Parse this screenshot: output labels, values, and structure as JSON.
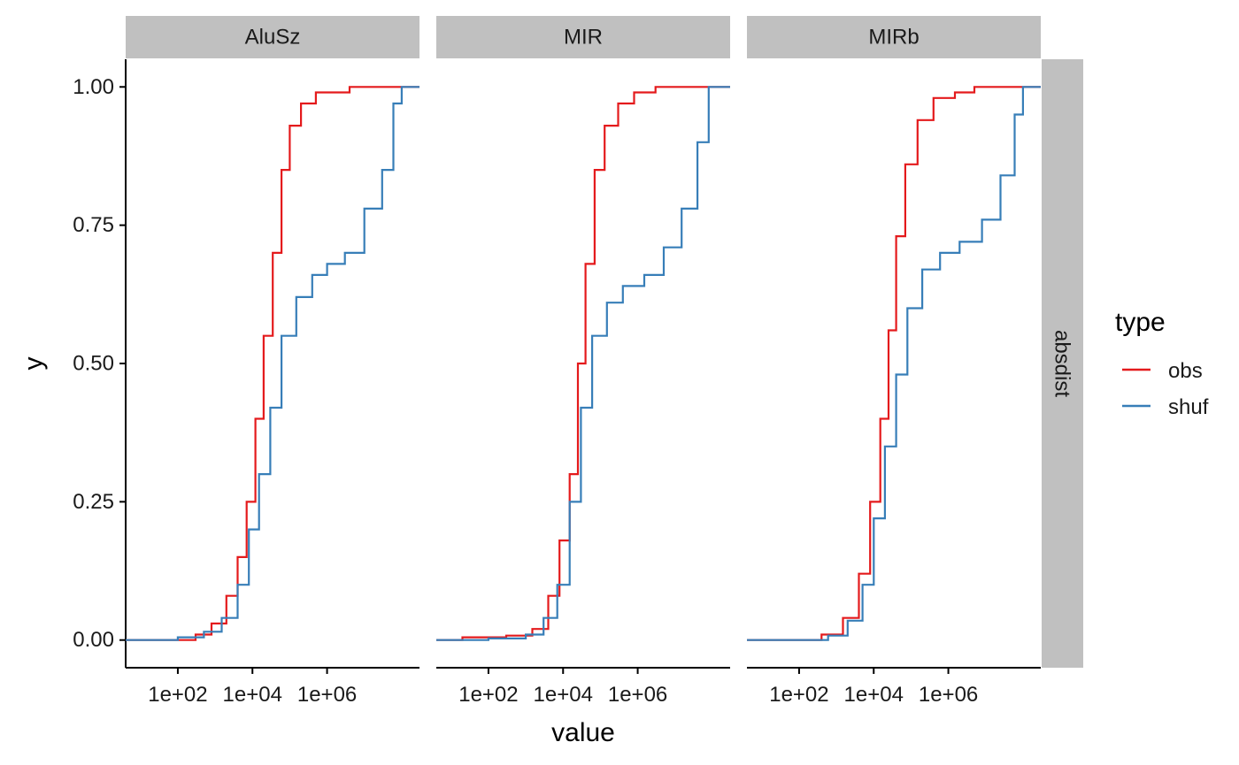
{
  "chart_data": {
    "type": "line",
    "xlabel": "value",
    "ylabel": "y",
    "x_scale": "log10",
    "xlim": [
      4,
      300000000
    ],
    "ylim": [
      -0.05,
      1.05
    ],
    "x_ticks": [
      100,
      10000,
      1000000
    ],
    "x_tick_labels": [
      "1e+02",
      "1e+04",
      "1e+06"
    ],
    "y_ticks": [
      0,
      0.25,
      0.5,
      0.75,
      1
    ],
    "y_tick_labels": [
      "0.00",
      "0.25",
      "0.50",
      "0.75",
      "1.00"
    ],
    "row_strip": "absdist",
    "legend": {
      "title": "type",
      "position": "right"
    },
    "colors": {
      "obs": "#E41A1C",
      "shuf": "#377EB8",
      "strip_bg": "#C0C0C0",
      "axis": "#000000"
    },
    "panels": [
      {
        "title": "AluSz",
        "series": [
          {
            "name": "obs",
            "points": [
              [
                4,
                0
              ],
              [
                30,
                0
              ],
              [
                300,
                0.01
              ],
              [
                800,
                0.03
              ],
              [
                2000,
                0.08
              ],
              [
                4000,
                0.15
              ],
              [
                7000,
                0.25
              ],
              [
                12000,
                0.4
              ],
              [
                20000,
                0.55
              ],
              [
                35000,
                0.7
              ],
              [
                60000,
                0.85
              ],
              [
                100000,
                0.93
              ],
              [
                200000,
                0.97
              ],
              [
                500000,
                0.99
              ],
              [
                2000000,
                0.99
              ],
              [
                4000000,
                1
              ],
              [
                300000000,
                1
              ]
            ]
          },
          {
            "name": "shuf",
            "points": [
              [
                4,
                0
              ],
              [
                100,
                0.005
              ],
              [
                500,
                0.015
              ],
              [
                1500,
                0.04
              ],
              [
                4000,
                0.1
              ],
              [
                8000,
                0.2
              ],
              [
                15000,
                0.3
              ],
              [
                30000,
                0.42
              ],
              [
                60000,
                0.55
              ],
              [
                150000,
                0.62
              ],
              [
                400000,
                0.66
              ],
              [
                1000000,
                0.68
              ],
              [
                3000000,
                0.7
              ],
              [
                10000000,
                0.78
              ],
              [
                30000000,
                0.85
              ],
              [
                60000000,
                0.97
              ],
              [
                100000000,
                1
              ],
              [
                300000000,
                1
              ]
            ]
          }
        ]
      },
      {
        "title": "MIR",
        "series": [
          {
            "name": "obs",
            "points": [
              [
                4,
                0
              ],
              [
                20,
                0.005
              ],
              [
                300,
                0.008
              ],
              [
                1500,
                0.02
              ],
              [
                4000,
                0.08
              ],
              [
                8000,
                0.18
              ],
              [
                15000,
                0.3
              ],
              [
                25000,
                0.5
              ],
              [
                40000,
                0.68
              ],
              [
                70000,
                0.85
              ],
              [
                130000,
                0.93
              ],
              [
                300000,
                0.97
              ],
              [
                800000,
                0.99
              ],
              [
                3000000,
                1
              ],
              [
                300000000,
                1
              ]
            ]
          },
          {
            "name": "shuf",
            "points": [
              [
                4,
                0
              ],
              [
                100,
                0.003
              ],
              [
                1000,
                0.01
              ],
              [
                3000,
                0.04
              ],
              [
                7000,
                0.1
              ],
              [
                15000,
                0.25
              ],
              [
                30000,
                0.42
              ],
              [
                60000,
                0.55
              ],
              [
                150000,
                0.61
              ],
              [
                400000,
                0.64
              ],
              [
                1500000,
                0.66
              ],
              [
                5000000,
                0.71
              ],
              [
                15000000,
                0.78
              ],
              [
                40000000,
                0.9
              ],
              [
                80000000,
                1
              ],
              [
                300000000,
                1
              ]
            ]
          }
        ]
      },
      {
        "title": "MIRb",
        "series": [
          {
            "name": "obs",
            "points": [
              [
                4,
                0
              ],
              [
                100,
                0
              ],
              [
                400,
                0.01
              ],
              [
                1500,
                0.04
              ],
              [
                4000,
                0.12
              ],
              [
                8000,
                0.25
              ],
              [
                15000,
                0.4
              ],
              [
                25000,
                0.56
              ],
              [
                40000,
                0.73
              ],
              [
                70000,
                0.86
              ],
              [
                150000,
                0.94
              ],
              [
                400000,
                0.98
              ],
              [
                1500000,
                0.99
              ],
              [
                5000000,
                1
              ],
              [
                300000000,
                1
              ]
            ]
          },
          {
            "name": "shuf",
            "points": [
              [
                4,
                0
              ],
              [
                200,
                0
              ],
              [
                600,
                0.008
              ],
              [
                2000,
                0.035
              ],
              [
                5000,
                0.1
              ],
              [
                10000,
                0.22
              ],
              [
                20000,
                0.35
              ],
              [
                40000,
                0.48
              ],
              [
                80000,
                0.6
              ],
              [
                200000,
                0.67
              ],
              [
                600000,
                0.7
              ],
              [
                2000000,
                0.72
              ],
              [
                8000000,
                0.76
              ],
              [
                25000000,
                0.84
              ],
              [
                60000000,
                0.95
              ],
              [
                100000000,
                1
              ],
              [
                300000000,
                1
              ]
            ]
          }
        ]
      }
    ]
  }
}
